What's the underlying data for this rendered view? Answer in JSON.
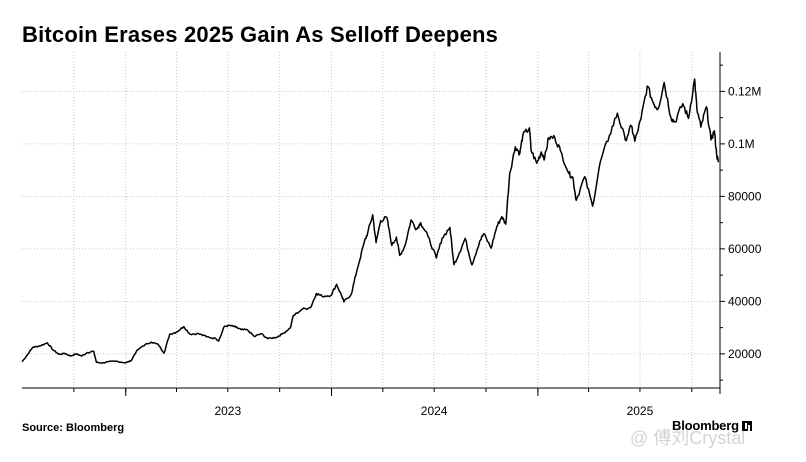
{
  "chart_data": {
    "type": "line",
    "title": "Bitcoin Erases 2025 Gain As Selloff Deepens",
    "xlabel": "",
    "ylabel": "",
    "source": "Source: Bloomberg",
    "brand": "Bloomberg",
    "watermark": "@ 傅刘Crystal",
    "y_ticks": [
      {
        "value": 20000,
        "label": "20000"
      },
      {
        "value": 40000,
        "label": "40000"
      },
      {
        "value": 60000,
        "label": "60000"
      },
      {
        "value": 80000,
        "label": "80000"
      },
      {
        "value": 100000,
        "label": "0.1M"
      },
      {
        "value": 120000,
        "label": "0.12M"
      }
    ],
    "ylim": [
      7000,
      135000
    ],
    "x_ticks": [
      "2023",
      "2024",
      "2025"
    ],
    "xlim": [
      "2022-07-01",
      "2025-11-20"
    ],
    "grid": true,
    "series": [
      {
        "name": "",
        "color": "#000000",
        "points": [
          [
            "2022-07-01",
            17000
          ],
          [
            "2022-07-10",
            19500
          ],
          [
            "2022-07-20",
            22500
          ],
          [
            "2022-08-01",
            23000
          ],
          [
            "2022-08-15",
            24200
          ],
          [
            "2022-08-25",
            21500
          ],
          [
            "2022-09-05",
            19800
          ],
          [
            "2022-09-15",
            20200
          ],
          [
            "2022-09-25",
            19200
          ],
          [
            "2022-10-05",
            20000
          ],
          [
            "2022-10-15",
            19200
          ],
          [
            "2022-10-25",
            20500
          ],
          [
            "2022-11-05",
            21000
          ],
          [
            "2022-11-10",
            16800
          ],
          [
            "2022-11-20",
            16500
          ],
          [
            "2022-12-01",
            17000
          ],
          [
            "2022-12-15",
            17200
          ],
          [
            "2022-12-31",
            16600
          ],
          [
            "2023-01-10",
            17300
          ],
          [
            "2023-01-20",
            21000
          ],
          [
            "2023-01-31",
            23000
          ],
          [
            "2023-02-15",
            24500
          ],
          [
            "2023-02-28",
            23500
          ],
          [
            "2023-03-10",
            20300
          ],
          [
            "2023-03-20",
            27500
          ],
          [
            "2023-04-01",
            28300
          ],
          [
            "2023-04-14",
            30400
          ],
          [
            "2023-04-25",
            27500
          ],
          [
            "2023-05-10",
            27700
          ],
          [
            "2023-05-25",
            26500
          ],
          [
            "2023-06-10",
            25800
          ],
          [
            "2023-06-15",
            25000
          ],
          [
            "2023-06-25",
            30500
          ],
          [
            "2023-07-05",
            30800
          ],
          [
            "2023-07-15",
            30200
          ],
          [
            "2023-07-25",
            29200
          ],
          [
            "2023-08-05",
            29100
          ],
          [
            "2023-08-17",
            26600
          ],
          [
            "2023-08-29",
            27700
          ],
          [
            "2023-09-10",
            25800
          ],
          [
            "2023-09-25",
            26300
          ],
          [
            "2023-10-05",
            27500
          ],
          [
            "2023-10-20",
            29900
          ],
          [
            "2023-10-25",
            34500
          ],
          [
            "2023-11-10",
            37000
          ],
          [
            "2023-11-25",
            37700
          ],
          [
            "2023-12-05",
            43000
          ],
          [
            "2023-12-15",
            42000
          ],
          [
            "2023-12-31",
            42300
          ],
          [
            "2024-01-10",
            46500
          ],
          [
            "2024-01-20",
            41600
          ],
          [
            "2024-01-23",
            39800
          ],
          [
            "2024-02-05",
            42700
          ],
          [
            "2024-02-15",
            51800
          ],
          [
            "2024-02-28",
            62500
          ],
          [
            "2024-03-05",
            66000
          ],
          [
            "2024-03-14",
            73000
          ],
          [
            "2024-03-20",
            62400
          ],
          [
            "2024-03-28",
            70700
          ],
          [
            "2024-04-08",
            72000
          ],
          [
            "2024-04-17",
            61300
          ],
          [
            "2024-04-25",
            64500
          ],
          [
            "2024-05-01",
            57500
          ],
          [
            "2024-05-10",
            61000
          ],
          [
            "2024-05-21",
            71000
          ],
          [
            "2024-05-31",
            67500
          ],
          [
            "2024-06-07",
            70000
          ],
          [
            "2024-06-20",
            64800
          ],
          [
            "2024-07-05",
            56500
          ],
          [
            "2024-07-15",
            64000
          ],
          [
            "2024-07-29",
            68200
          ],
          [
            "2024-08-05",
            54000
          ],
          [
            "2024-08-15",
            58600
          ],
          [
            "2024-08-25",
            64000
          ],
          [
            "2024-09-06",
            53900
          ],
          [
            "2024-09-20",
            63000
          ],
          [
            "2024-09-27",
            65800
          ],
          [
            "2024-10-10",
            60300
          ],
          [
            "2024-10-20",
            68400
          ],
          [
            "2024-10-29",
            72300
          ],
          [
            "2024-11-05",
            69400
          ],
          [
            "2024-11-12",
            88700
          ],
          [
            "2024-11-22",
            98900
          ],
          [
            "2024-11-30",
            96400
          ],
          [
            "2024-12-05",
            103000
          ],
          [
            "2024-12-17",
            106100
          ],
          [
            "2024-12-20",
            97500
          ],
          [
            "2024-12-30",
            92600
          ],
          [
            "2025-01-07",
            96900
          ],
          [
            "2025-01-13",
            94500
          ],
          [
            "2025-01-20",
            102300
          ],
          [
            "2025-01-31",
            102400
          ],
          [
            "2025-02-10",
            97400
          ],
          [
            "2025-02-25",
            88700
          ],
          [
            "2025-03-04",
            87200
          ],
          [
            "2025-03-10",
            78500
          ],
          [
            "2025-03-25",
            87500
          ],
          [
            "2025-04-08",
            76300
          ],
          [
            "2025-04-22",
            93400
          ],
          [
            "2025-05-08",
            103300
          ],
          [
            "2025-05-22",
            111700
          ],
          [
            "2025-06-05",
            101500
          ],
          [
            "2025-06-16",
            106800
          ],
          [
            "2025-06-22",
            101000
          ],
          [
            "2025-07-03",
            109600
          ],
          [
            "2025-07-14",
            122000
          ],
          [
            "2025-07-25",
            115500
          ],
          [
            "2025-08-02",
            113300
          ],
          [
            "2025-08-13",
            123400
          ],
          [
            "2025-08-25",
            110000
          ],
          [
            "2025-09-01",
            108300
          ],
          [
            "2025-09-15",
            115300
          ],
          [
            "2025-09-25",
            109700
          ],
          [
            "2025-10-06",
            124700
          ],
          [
            "2025-10-10",
            113200
          ],
          [
            "2025-10-17",
            106400
          ],
          [
            "2025-10-27",
            114100
          ],
          [
            "2025-11-04",
            101500
          ],
          [
            "2025-11-10",
            105000
          ],
          [
            "2025-11-14",
            96000
          ],
          [
            "2025-11-17",
            93000
          ]
        ]
      }
    ]
  }
}
